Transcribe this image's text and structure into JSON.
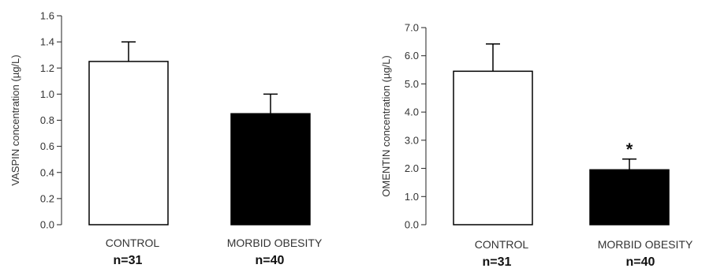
{
  "chart_data": [
    {
      "type": "bar",
      "categories": [
        "CONTROL",
        "MORBID OBESITY"
      ],
      "sample_sizes": [
        "n=31",
        "n=40"
      ],
      "values": [
        1.25,
        0.85
      ],
      "errors": [
        0.15,
        0.15
      ],
      "bar_colors": [
        "#ffffff",
        "#000000"
      ],
      "ylabel": "VASPIN concentration (µg/L)",
      "ylim": [
        0,
        1.6
      ],
      "yticks": [
        "0.0",
        "0.2",
        "0.4",
        "0.6",
        "0.8",
        "1.0",
        "1.2",
        "1.4",
        "1.6"
      ],
      "annotations": [
        "",
        ""
      ],
      "grid": false
    },
    {
      "type": "bar",
      "categories": [
        "CONTROL",
        "MORBID OBESITY"
      ],
      "sample_sizes": [
        "n=31",
        "n=40"
      ],
      "values": [
        5.45,
        1.95
      ],
      "errors": [
        0.97,
        0.38
      ],
      "bar_colors": [
        "#ffffff",
        "#000000"
      ],
      "ylabel": "OMENTIN concentration (µg/L)",
      "ylim": [
        0,
        7.0
      ],
      "yticks": [
        "0.0",
        "1.0",
        "2.0",
        "3.0",
        "4.0",
        "5.0",
        "6.0",
        "7.0"
      ],
      "annotations": [
        "",
        "*"
      ],
      "grid": false
    }
  ]
}
